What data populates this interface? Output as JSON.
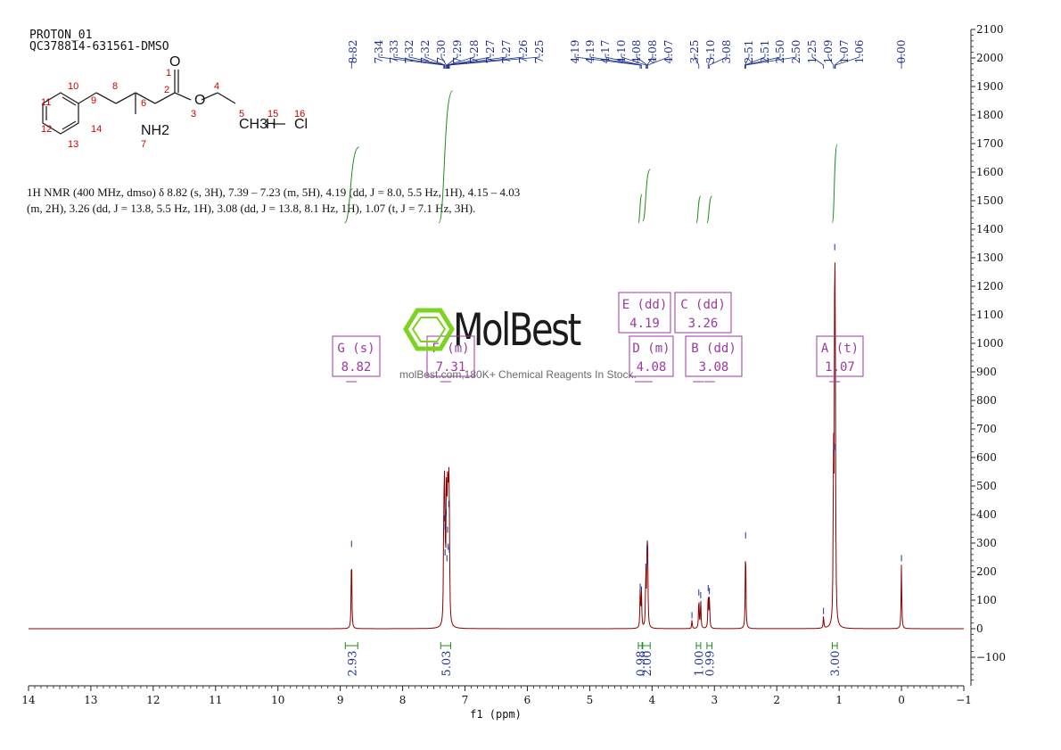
{
  "header": {
    "line1": "PROTON_01",
    "line2": "QC378814-631561-DMSO"
  },
  "nmr_description": "1H NMR (400 MHz, dmso) δ 8.82 (s, 3H), 7.39 – 7.23 (m, 5H), 4.19 (dd, J = 8.0, 5.5 Hz, 1H), 4.15 – 4.03 (m, 2H), 3.26 (dd, J = 13.8, 5.5 Hz, 1H), 3.08 (dd, J = 13.8, 8.1 Hz, 1H), 1.07 (t, J = 7.1 Hz, 3H).",
  "watermark": {
    "brand": "MolBest",
    "tagline": "molBest.com,180K+ Chemical Reagents In Stock."
  },
  "molecule": {
    "atoms": [
      "O",
      "O",
      "CH3",
      "H",
      "Cl",
      "NH2"
    ],
    "numbers": [
      "1",
      "2",
      "3",
      "4",
      "5",
      "6",
      "7",
      "8",
      "9",
      "10",
      "11",
      "12",
      "13",
      "14",
      "15",
      "16"
    ]
  },
  "colors": {
    "spectrum": "#8b0000",
    "integral": "#1e8c1e",
    "annotation": "#9b3aa0",
    "peak_label": "#1c2f8c",
    "atom_number": "#cc0000"
  },
  "chart_data": {
    "type": "line",
    "xlabel": "f1 (ppm)",
    "xlim": [
      14,
      -1
    ],
    "ylim": [
      -200,
      2100
    ],
    "x_ticks": [
      "14",
      "13",
      "12",
      "11",
      "10",
      "9",
      "8",
      "7",
      "6",
      "5",
      "4",
      "3",
      "2",
      "1",
      "0",
      "−1"
    ],
    "y_ticks": [
      "2100",
      "2000",
      "1900",
      "1800",
      "1700",
      "1600",
      "1500",
      "1400",
      "1300",
      "1200",
      "1100",
      "1000",
      "900",
      "800",
      "700",
      "600",
      "500",
      "400",
      "300",
      "200",
      "100",
      "0",
      "−100"
    ],
    "peaks": [
      {
        "ppm": 8.82,
        "height": 280
      },
      {
        "ppm": 7.34,
        "height": 340
      },
      {
        "ppm": 7.33,
        "height": 370
      },
      {
        "ppm": 7.32,
        "height": 250
      },
      {
        "ppm": 7.3,
        "height": 390
      },
      {
        "ppm": 7.29,
        "height": 230
      },
      {
        "ppm": 7.28,
        "height": 330
      },
      {
        "ppm": 7.27,
        "height": 270
      },
      {
        "ppm": 7.26,
        "height": 420
      },
      {
        "ppm": 7.25,
        "height": 260
      },
      {
        "ppm": 4.19,
        "height": 130
      },
      {
        "ppm": 4.17,
        "height": 120
      },
      {
        "ppm": 4.1,
        "height": 200
      },
      {
        "ppm": 4.08,
        "height": 265
      },
      {
        "ppm": 4.07,
        "height": 220
      },
      {
        "ppm": 3.36,
        "height": 30
      },
      {
        "ppm": 3.25,
        "height": 110
      },
      {
        "ppm": 3.22,
        "height": 100
      },
      {
        "ppm": 3.1,
        "height": 125
      },
      {
        "ppm": 3.08,
        "height": 115
      },
      {
        "ppm": 2.5,
        "height": 310
      },
      {
        "ppm": 1.25,
        "height": 45
      },
      {
        "ppm": 1.09,
        "height": 600
      },
      {
        "ppm": 1.07,
        "height": 1320
      },
      {
        "ppm": 1.06,
        "height": 620
      },
      {
        "ppm": 0.0,
        "height": 230
      }
    ],
    "peak_labels": [
      {
        "group": 1,
        "ppm": [
          "8.82"
        ]
      },
      {
        "group": 2,
        "ppm": [
          "7.34",
          "7.33",
          "7.32",
          "7.32",
          "7.30",
          "7.29",
          "7.28",
          "7.27",
          "7.27",
          "7.26",
          "7.25"
        ]
      },
      {
        "group": 3,
        "ppm": [
          "4.19",
          "4.19",
          "4.17",
          "4.10",
          "4.08",
          "4.08",
          "4.07"
        ]
      },
      {
        "group": 4,
        "ppm": [
          "3.25",
          "3.10",
          "3.08"
        ]
      },
      {
        "group": 5,
        "ppm": [
          "2.51",
          "2.51",
          "2.50",
          "2.50",
          "1.25",
          "1.09",
          "1.07",
          "1.06"
        ]
      },
      {
        "group": 6,
        "ppm": [
          "0.00"
        ]
      }
    ],
    "multiplets": [
      {
        "label": "G (s)",
        "shift": "8.82",
        "ppm": 8.82
      },
      {
        "label": "F (m)",
        "shift": "7.31",
        "ppm": 7.31
      },
      {
        "label": "E (dd)",
        "shift": "4.19",
        "ppm": 4.19
      },
      {
        "label": "D (m)",
        "shift": "4.08",
        "ppm": 4.08
      },
      {
        "label": "C (dd)",
        "shift": "3.26",
        "ppm": 3.26
      },
      {
        "label": "B (dd)",
        "shift": "3.08",
        "ppm": 3.08
      },
      {
        "label": "A (t)",
        "shift": "1.07",
        "ppm": 1.07
      }
    ],
    "integrals": [
      {
        "value": "2.93",
        "from": 8.92,
        "to": 8.72
      },
      {
        "value": "5.03",
        "from": 7.39,
        "to": 7.23
      },
      {
        "value": "0.98",
        "from": 4.22,
        "to": 4.16
      },
      {
        "value": "2.00",
        "from": 4.15,
        "to": 4.03
      },
      {
        "value": "1.00",
        "from": 3.29,
        "to": 3.22
      },
      {
        "value": "0.99",
        "from": 3.12,
        "to": 3.04
      },
      {
        "value": "3.00",
        "from": 1.11,
        "to": 1.03
      }
    ]
  }
}
